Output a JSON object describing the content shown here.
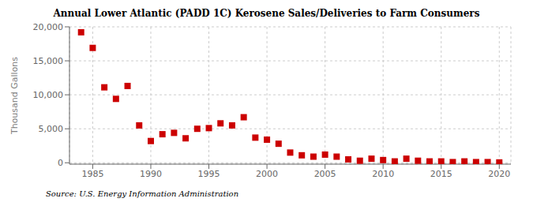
{
  "chart_data": {
    "type": "scatter",
    "title": "Annual Lower Atlantic (PADD 1C) Kerosene Sales/Deliveries to Farm Consumers",
    "ylabel": "Thousand Gallons",
    "annotation": "Source: U.S. Energy Information Administration",
    "x": [
      1984,
      1985,
      1986,
      1987,
      1988,
      1989,
      1990,
      1991,
      1992,
      1993,
      1994,
      1995,
      1996,
      1997,
      1998,
      1999,
      2000,
      2001,
      2002,
      2003,
      2004,
      2005,
      2006,
      2007,
      2008,
      2009,
      2010,
      2011,
      2012,
      2013,
      2014,
      2015,
      2016,
      2017,
      2018,
      2019,
      2020
    ],
    "values": [
      19200,
      16900,
      11100,
      9400,
      11300,
      5500,
      3200,
      4200,
      4400,
      3600,
      5000,
      5100,
      5800,
      5500,
      6700,
      3700,
      3400,
      2800,
      1500,
      1100,
      900,
      1200,
      900,
      500,
      300,
      600,
      400,
      200,
      600,
      300,
      200,
      200,
      100,
      200,
      100,
      100,
      50
    ],
    "color": "#cc0000",
    "marker": "square",
    "xlim": [
      1983,
      2021
    ],
    "xticks": [
      1985,
      1990,
      1995,
      2000,
      2005,
      2010,
      2015,
      2020
    ],
    "ylim": [
      -200,
      20000
    ],
    "yticks": [
      0,
      {
        "value": 5000,
        "label": "5,000"
      },
      {
        "value": 10000,
        "label": "10,000"
      },
      {
        "value": 15000,
        "label": "15,000"
      },
      {
        "value": 20000,
        "label": "20,000"
      }
    ],
    "grid": true
  }
}
